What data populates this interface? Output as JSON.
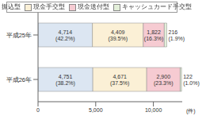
{
  "chart_data": {
    "type": "bar",
    "orientation": "horizontal",
    "stacked": true,
    "data_labels": true,
    "legend": "top",
    "grid": false,
    "categories": [
      "平成25年",
      "平成26年"
    ],
    "series": [
      {
        "name": "振込型",
        "color": "#dce6f2",
        "values": [
          4714,
          4751
        ],
        "value_labels": [
          "4,714 (42.2%)",
          "4,751 (38.2%)"
        ]
      },
      {
        "name": "現金手交型",
        "color": "#fbf0d6",
        "values": [
          4409,
          4671
        ],
        "value_labels": [
          "4,409 (39.5%)",
          "4,671 (37.5%)"
        ]
      },
      {
        "name": "現金送付型",
        "color": "#f6cbd2",
        "values": [
          1822,
          2900
        ],
        "value_labels": [
          "1,822 (16.3%)",
          "2,900 (23.3%)"
        ]
      },
      {
        "name": "キャッシュカード手交型",
        "color": "#e3efd9",
        "values": [
          216,
          122
        ],
        "value_labels": [
          "216 (1.9%)",
          "122 (1.0%)"
        ]
      }
    ],
    "xlim": [
      0,
      12500
    ],
    "xticks": [
      0,
      {
        "value": 5000,
        "label": "5,000"
      },
      {
        "value": 10000,
        "label": "10,000"
      }
    ],
    "xlabel": "(件)"
  }
}
